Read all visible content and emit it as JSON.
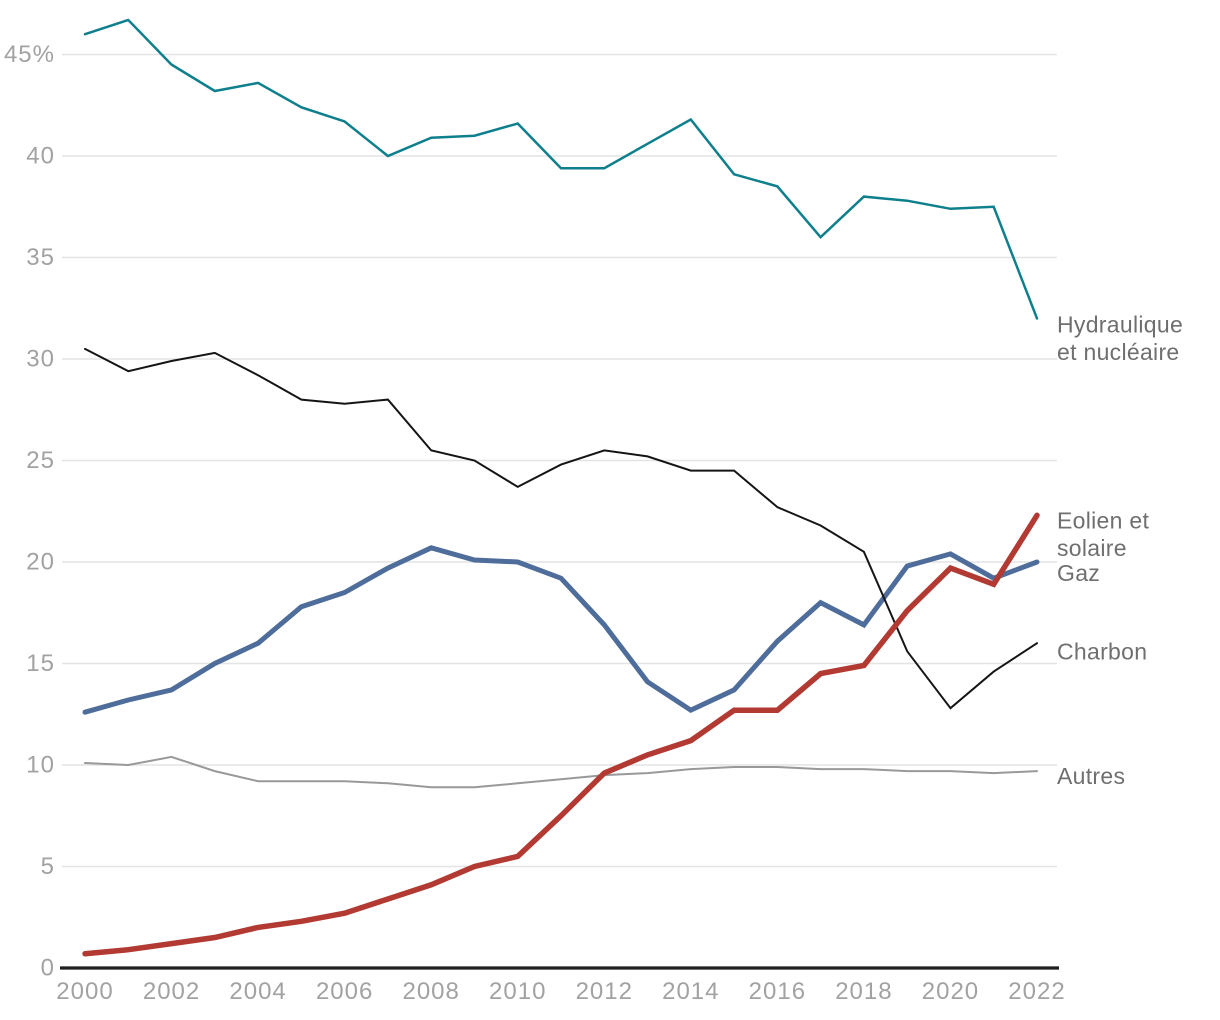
{
  "chart_data": {
    "type": "line",
    "title": "",
    "x": [
      2000,
      2001,
      2002,
      2003,
      2004,
      2005,
      2006,
      2007,
      2008,
      2009,
      2010,
      2011,
      2012,
      2013,
      2014,
      2015,
      2016,
      2017,
      2018,
      2019,
      2020,
      2021,
      2022
    ],
    "x_tick_labels": [
      "2000",
      "2002",
      "2004",
      "2006",
      "2008",
      "2010",
      "2012",
      "2014",
      "2016",
      "2018",
      "2020",
      "2022"
    ],
    "x_tick_values": [
      2000,
      2002,
      2004,
      2006,
      2008,
      2010,
      2012,
      2014,
      2016,
      2018,
      2020,
      2022
    ],
    "y_ticks": [
      {
        "v": 0,
        "label": "0"
      },
      {
        "v": 5,
        "label": "5"
      },
      {
        "v": 10,
        "label": "10"
      },
      {
        "v": 15,
        "label": "15"
      },
      {
        "v": 20,
        "label": "20"
      },
      {
        "v": 25,
        "label": "25"
      },
      {
        "v": 30,
        "label": "30"
      },
      {
        "v": 35,
        "label": "35"
      },
      {
        "v": 40,
        "label": "40"
      },
      {
        "v": 45,
        "label": "45%"
      }
    ],
    "xlim": [
      2000,
      2022
    ],
    "ylim": [
      0,
      45
    ],
    "grid": "horizontal",
    "legend_position": "right-end-labels",
    "series": [
      {
        "id": "hydraulique-et-nucleaire",
        "label_lines": [
          "Hydraulique",
          "et nucléaire"
        ],
        "label_anchor_values": [
          31.7,
          30.35
        ],
        "color": "#0e7f8d",
        "width": 2.5,
        "values": [
          46.0,
          46.7,
          44.5,
          43.2,
          43.6,
          42.4,
          41.7,
          40.0,
          40.9,
          41.0,
          41.6,
          39.4,
          39.4,
          40.6,
          41.8,
          39.1,
          38.5,
          36.0,
          38.0,
          37.8,
          37.4,
          37.5,
          32.0
        ]
      },
      {
        "id": "autres",
        "label_lines": [
          "Autres"
        ],
        "label_anchor_values": [
          9.45
        ],
        "color": "#999999",
        "width": 2,
        "values": [
          10.1,
          10.0,
          10.4,
          9.7,
          9.2,
          9.2,
          9.2,
          9.1,
          8.9,
          8.9,
          9.1,
          9.3,
          9.5,
          9.6,
          9.8,
          9.9,
          9.9,
          9.8,
          9.8,
          9.7,
          9.7,
          9.6,
          9.7
        ]
      },
      {
        "id": "gaz",
        "label_lines": [
          "Gaz"
        ],
        "label_anchor_values": [
          19.45
        ],
        "color": "#4e6d9b",
        "width": 5,
        "values": [
          12.6,
          13.2,
          13.7,
          15.0,
          16.0,
          17.8,
          18.5,
          19.7,
          20.7,
          20.1,
          20.0,
          19.2,
          16.9,
          14.1,
          12.7,
          13.7,
          16.1,
          18.0,
          16.9,
          19.8,
          20.4,
          19.2,
          20.0
        ]
      },
      {
        "id": "charbon",
        "label_lines": [
          "Charbon"
        ],
        "label_anchor_values": [
          15.6
        ],
        "color": "#151515",
        "width": 2,
        "values": [
          30.5,
          29.4,
          29.9,
          30.3,
          29.2,
          28.0,
          27.8,
          28.0,
          25.5,
          25.0,
          23.7,
          24.8,
          25.5,
          25.2,
          24.5,
          24.5,
          22.7,
          21.8,
          20.5,
          15.6,
          12.8,
          14.6,
          16.0
        ]
      },
      {
        "id": "eolien-et-solaire",
        "label_lines": [
          "Eolien et",
          "solaire"
        ],
        "label_anchor_values": [
          22.05,
          20.7
        ],
        "color": "#b23a32",
        "width": 5.5,
        "values": [
          0.7,
          0.9,
          1.2,
          1.5,
          2.0,
          2.3,
          2.7,
          3.4,
          4.1,
          5.0,
          5.5,
          7.5,
          9.6,
          10.5,
          11.2,
          12.7,
          12.7,
          14.5,
          14.9,
          17.6,
          19.7,
          18.9,
          22.3
        ]
      }
    ],
    "colors": {
      "grid": "#e4e4e4",
      "axis_line": "#1f1f1f",
      "tick_text": "#a2a2a2",
      "series_label_text": "#6f6f6f"
    }
  }
}
